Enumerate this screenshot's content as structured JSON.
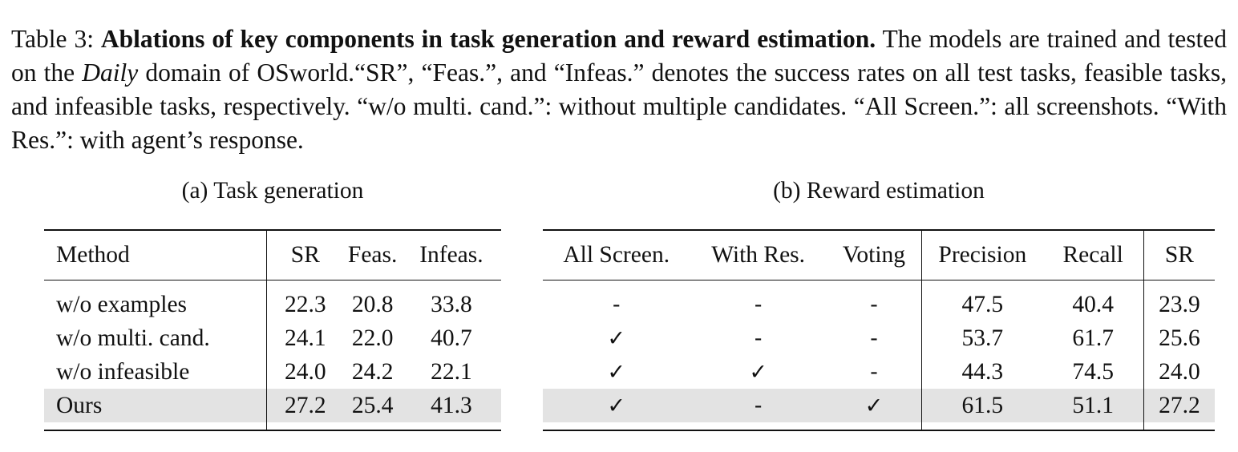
{
  "caption": {
    "label": "Table 3:",
    "title": "Ablations of key components in task generation and reward estimation.",
    "text_1": "The models are trained and tested on the",
    "domain": "Daily",
    "text_2": "domain of OSworld.“SR”, “Feas.”, and “Infeas.” denotes the success rates on all test tasks, feasible tasks, and infeasible tasks, respectively. “w/o multi. cand.”: without multiple candidates. “All Screen.”: all screenshots. “With Res.”: with agent’s response."
  },
  "table_a": {
    "subcaption": "(a) Task generation",
    "headers": [
      "Method",
      "SR",
      "Feas.",
      "Infeas."
    ],
    "rows": [
      {
        "method": "w/o examples",
        "sr": "22.3",
        "feas": "20.8",
        "infeas": "33.8"
      },
      {
        "method": "w/o multi. cand.",
        "sr": "24.1",
        "feas": "22.0",
        "infeas": "40.7"
      },
      {
        "method": "w/o infeasible",
        "sr": "24.0",
        "feas": "24.2",
        "infeas": "22.1"
      },
      {
        "method": "Ours",
        "sr": "27.2",
        "feas": "25.4",
        "infeas": "41.3"
      }
    ]
  },
  "table_b": {
    "subcaption": "(b) Reward estimation",
    "headers": [
      "All Screen.",
      "With Res.",
      "Voting",
      "Precision",
      "Recall",
      "SR"
    ],
    "rows": [
      {
        "all_screen": "-",
        "with_res": "-",
        "voting": "-",
        "precision": "47.5",
        "recall": "40.4",
        "sr": "23.9"
      },
      {
        "all_screen": "✓",
        "with_res": "-",
        "voting": "-",
        "precision": "53.7",
        "recall": "61.7",
        "sr": "25.6"
      },
      {
        "all_screen": "✓",
        "with_res": "✓",
        "voting": "-",
        "precision": "44.3",
        "recall": "74.5",
        "sr": "24.0"
      },
      {
        "all_screen": "✓",
        "with_res": "-",
        "voting": "✓",
        "precision": "61.5",
        "recall": "51.1",
        "sr": "27.2"
      }
    ]
  },
  "colors": {
    "highlight_row": "#e3e3e3",
    "text": "#111111"
  }
}
